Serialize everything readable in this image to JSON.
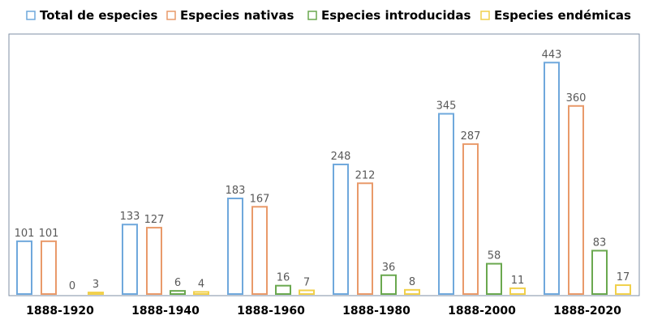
{
  "chart_data": {
    "type": "bar",
    "title": "",
    "xlabel": "",
    "ylabel": "",
    "categories": [
      "1888-1920",
      "1888-1940",
      "1888-1960",
      "1888-1980",
      "1888-2000",
      "1888-2020"
    ],
    "series": [
      {
        "name": "Total de especies",
        "values": [
          101,
          133,
          183,
          248,
          345,
          443
        ]
      },
      {
        "name": "Especies nativas",
        "values": [
          101,
          127,
          167,
          212,
          287,
          360
        ]
      },
      {
        "name": "Especies introducidas",
        "values": [
          0,
          6,
          16,
          36,
          58,
          83
        ]
      },
      {
        "name": "Especies endémicas",
        "values": [
          3,
          4,
          7,
          8,
          11,
          17
        ]
      }
    ],
    "ylim": [
      0,
      443
    ],
    "grid": false,
    "legend_position": "top",
    "data_labels": true,
    "colors": {
      "series": [
        "#6fa8dc",
        "#e99a6a",
        "#6aa84f",
        "#f1d04b"
      ],
      "frame": "#7f8fa6",
      "label_text": "#595959",
      "category_text": "#000000",
      "legend_text": "#000000"
    }
  }
}
